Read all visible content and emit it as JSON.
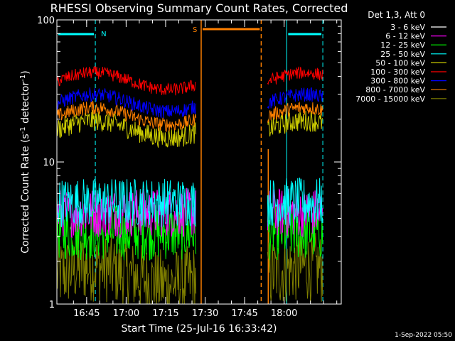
{
  "chart_data": {
    "type": "line",
    "title": "RHESSI Observing Summary Count Rates, Corrected",
    "xlabel": "Start Time (25-Jul-16 16:33:42)",
    "ylabel_main": "Corrected Count Rate (s",
    "ylabel_sup1": "-1",
    "ylabel_mid": " detector",
    "ylabel_sup2": "-1",
    "ylabel_end": ")",
    "yscale": "log",
    "ylim": [
      1,
      100
    ],
    "y_ticks": [
      {
        "value": 1,
        "label": "1"
      },
      {
        "value": 10,
        "label": "10"
      },
      {
        "value": 100,
        "label": "100"
      }
    ],
    "x_range_minutes": [
      0,
      108
    ],
    "x_ticks": [
      {
        "minute": 11.3,
        "label": "16:45"
      },
      {
        "minute": 26.3,
        "label": "17:00"
      },
      {
        "minute": 41.3,
        "label": "17:15"
      },
      {
        "minute": 56.3,
        "label": "17:30"
      },
      {
        "minute": 71.3,
        "label": "17:45"
      },
      {
        "minute": 86.3,
        "label": "18:00"
      }
    ],
    "legend_title": "Det 1,3, Att 0",
    "legend_placement": "top-right",
    "series": [
      {
        "name": "3 - 6 keV",
        "color": "#000000",
        "level": 0
      },
      {
        "name": "6 - 12 keV",
        "color": "#ff00ff",
        "level": 4.4
      },
      {
        "name": "12 - 25 keV",
        "color": "#00ff00",
        "level": 3.2
      },
      {
        "name": "25 - 50 keV",
        "color": "#00ffff",
        "level": 5.2
      },
      {
        "name": "50 - 100 keV",
        "color": "#cccc00",
        "level": 17
      },
      {
        "name": "100 - 300 keV",
        "color": "#ff0000",
        "level": 37
      },
      {
        "name": "300 - 800 keV",
        "color": "#0000ff",
        "level": 26
      },
      {
        "name": "800 - 7000 keV",
        "color": "#ff8000",
        "level": 21
      },
      {
        "name": "7000 - 15000 keV",
        "color": "#808000",
        "level": 1.6
      }
    ],
    "data_intervals_minutes": [
      [
        0,
        53
      ],
      [
        80,
        101
      ]
    ],
    "night_flags": [
      {
        "label": "N",
        "start": 0,
        "end": 14.6,
        "color": "#00ffff"
      },
      {
        "label": "",
        "start": 87.3,
        "end": 101,
        "color": "#00ffff"
      }
    ],
    "saa_flag": {
      "label": "S",
      "start": 54.8,
      "end": 77.6,
      "color": "#ff8000"
    },
    "footer_date": "1-Sep-2022 05:50"
  }
}
